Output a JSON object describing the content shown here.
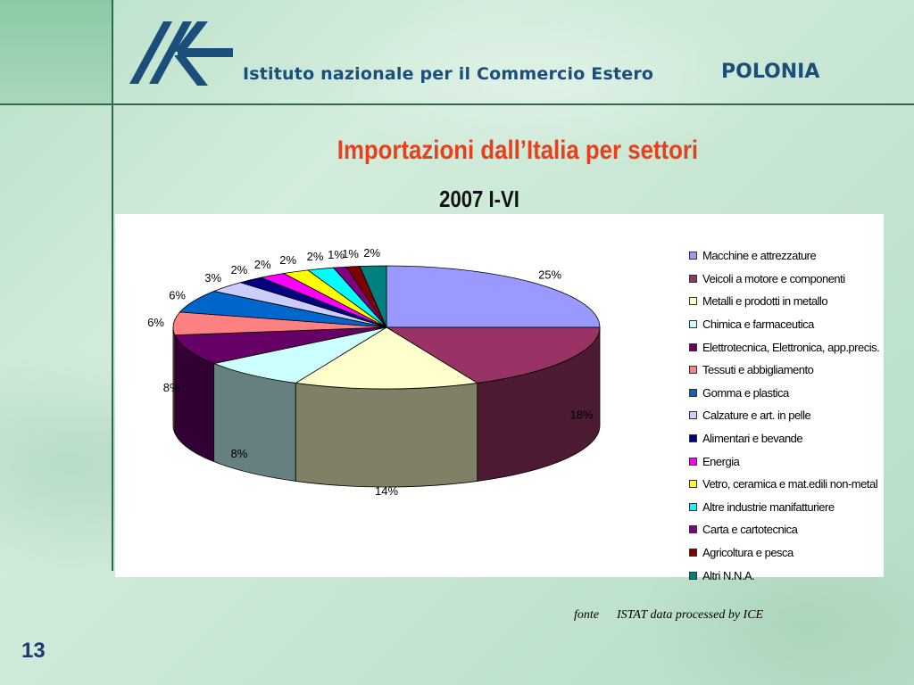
{
  "header": {
    "institute": "Istituto nazionale per il Commercio Estero",
    "country": "POLONIA",
    "logo_icon": "ice-logo-icon",
    "brand_color": "#1b4e7a"
  },
  "slide": {
    "page_number": "13",
    "source_label": "fonte",
    "source_text": "ISTAT data processed by ICE"
  },
  "chart_data": {
    "type": "pie",
    "title": "Importazioni dall’Italia per settori",
    "subtitle": "2007 I-VI",
    "legend_position": "right",
    "slices": [
      {
        "name": "Macchine e attrezzature",
        "value": 25,
        "label": "25%",
        "color": "#9999ff"
      },
      {
        "name": "Veicoli a motore e componenti",
        "value": 18,
        "label": "18%",
        "color": "#993366"
      },
      {
        "name": "Metalli e prodotti in metallo",
        "value": 14,
        "label": "14%",
        "color": "#ffffcc"
      },
      {
        "name": "Chimica e farmaceutica",
        "value": 8,
        "label": "8%",
        "color": "#ccffff"
      },
      {
        "name": "Elettrotecnica, Elettronica, app.precis.",
        "value": 8,
        "label": "8%",
        "color": "#660066"
      },
      {
        "name": "Tessuti e abbigliamento",
        "value": 6,
        "label": "6%",
        "color": "#ff8080"
      },
      {
        "name": "Gomma e plastica",
        "value": 6,
        "label": "6%",
        "color": "#0066cc"
      },
      {
        "name": "Calzature e art. in pelle",
        "value": 3,
        "label": "3%",
        "color": "#ccccff"
      },
      {
        "name": "Alimentari e bevande",
        "value": 2,
        "label": "2%",
        "color": "#000080"
      },
      {
        "name": "Energia",
        "value": 2,
        "label": "2%",
        "color": "#ff00ff"
      },
      {
        "name": "Vetro, ceramica e mat.edili non-metal",
        "value": 2,
        "label": "2%",
        "color": "#ffff00"
      },
      {
        "name": "Altre industrie manifatturiere",
        "value": 2,
        "label": "2%",
        "color": "#00ffff"
      },
      {
        "name": "Carta e cartotecnica",
        "value": 1,
        "label": "1%",
        "color": "#800080"
      },
      {
        "name": "Agricoltura e pesca",
        "value": 1,
        "label": "1%",
        "color": "#800000"
      },
      {
        "name": "Altri N.N.A.",
        "value": 2,
        "label": "2%",
        "color": "#008080"
      }
    ]
  }
}
